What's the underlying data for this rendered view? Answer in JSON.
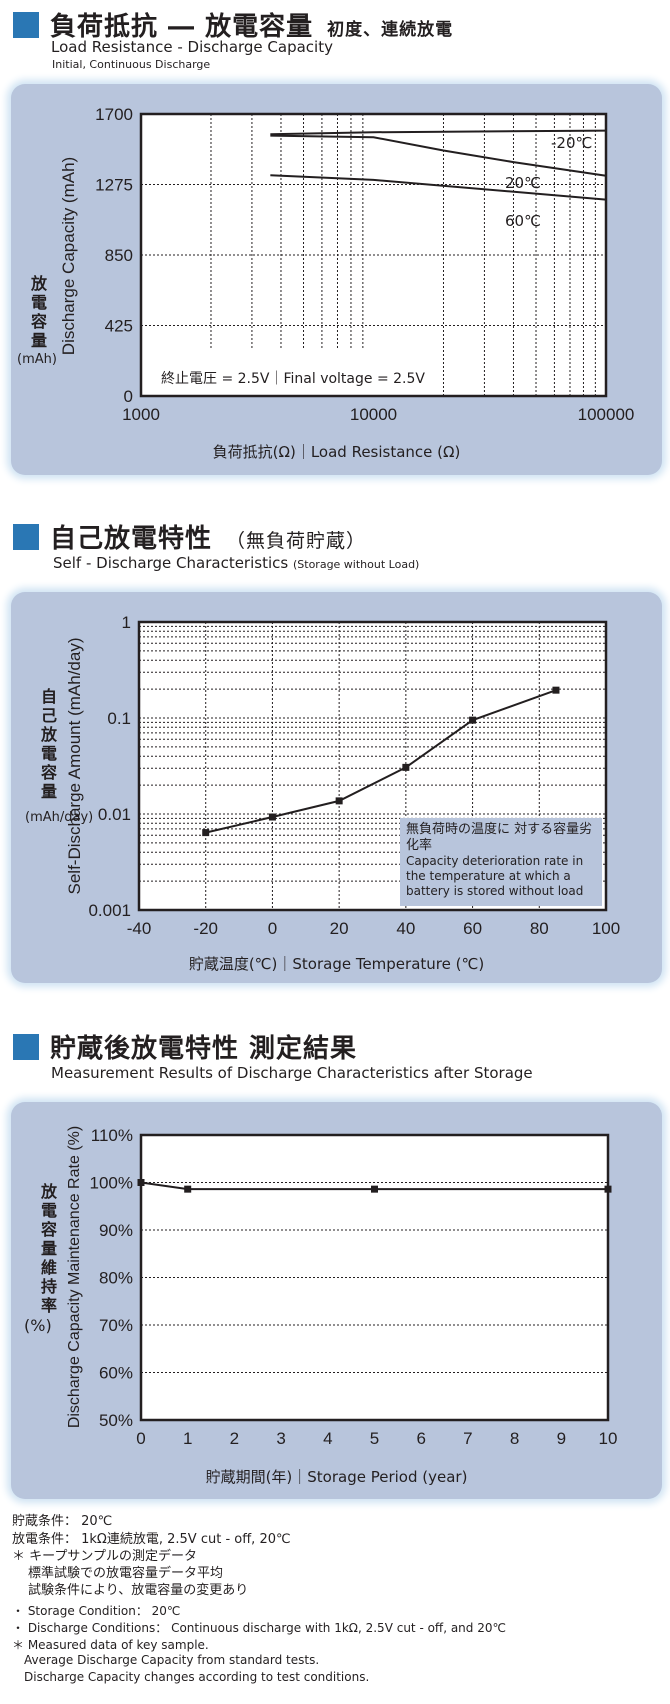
{
  "section1": {
    "title": "負荷抵抗 ― 放電容量",
    "title_note": "初度、連続放電",
    "subtitle": "Load Resistance - Discharge Capacity",
    "subsubtitle": "Initial, Continuous Discharge"
  },
  "section2": {
    "title": "自己放電特性",
    "title_note": "（無負荷貯蔵）",
    "subtitle": "Self - Discharge Characteristics",
    "subtitle_note": "(Storage without Load)"
  },
  "section3": {
    "title": "貯蔵後放電特性 測定結果",
    "subtitle": "Measurement Results of Discharge Characteristics after Storage"
  },
  "colors": {
    "accent": "#2a77b4",
    "panel": "#b8c5dc",
    "line": "#231f20"
  },
  "chart_data": [
    {
      "type": "line",
      "xscale": "log",
      "xlim": [
        1000,
        100000
      ],
      "ylim": [
        0,
        1700
      ],
      "xticks": [
        "1000",
        "10000",
        "100000"
      ],
      "yticks": [
        "0",
        "425",
        "850",
        "1275",
        "1700"
      ],
      "ylabel": "Discharge Capacity (mAh)",
      "ylabel_jp": "放電容量",
      "ylabel_unit": "(mAh)",
      "xlabel": "負荷抵抗(Ω)｜Load Resistance (Ω)",
      "annotation": "終止電圧 = 2.5V｜Final voltage = 2.5V",
      "grid": true,
      "series": [
        {
          "name": "-20℃",
          "x": [
            3600,
            10000,
            100000
          ],
          "y": [
            1578,
            1590,
            1600
          ]
        },
        {
          "name": "20℃",
          "x": [
            3600,
            10000,
            20000,
            40000,
            100000
          ],
          "y": [
            1570,
            1560,
            1480,
            1410,
            1328
          ]
        },
        {
          "name": "60℃",
          "x": [
            3600,
            10000,
            100000
          ],
          "y": [
            1331,
            1303,
            1184
          ]
        }
      ]
    },
    {
      "type": "line",
      "yscale": "log",
      "xlim": [
        -40,
        100
      ],
      "ylim": [
        0.001,
        1
      ],
      "xticks": [
        "-40",
        "-20",
        "0",
        "20",
        "40",
        "60",
        "80",
        "100"
      ],
      "yticks": [
        "0.001",
        "0.01",
        "0.1",
        "1"
      ],
      "ylabel": "Self-Discharge Amount (mAh/day)",
      "ylabel_jp": "自己放電容量",
      "ylabel_unit": "(mAh/day)",
      "xlabel": "貯蔵温度(℃)｜Storage Temperature (℃)",
      "grid": true,
      "annotation_jp": "無負荷時の温度に 対する容量劣化率",
      "annotation": "Capacity deterioration rate in the temperature at which a battery is stored without load",
      "series": [
        {
          "x": [
            -20,
            0,
            20,
            40,
            60,
            85
          ],
          "y": [
            0.0064,
            0.0093,
            0.0137,
            0.0306,
            0.095,
            0.195
          ]
        }
      ]
    },
    {
      "type": "line",
      "xlim": [
        0,
        10
      ],
      "ylim": [
        50,
        110
      ],
      "xticks": [
        "0",
        "1",
        "2",
        "3",
        "4",
        "5",
        "6",
        "7",
        "8",
        "9",
        "10"
      ],
      "yticks": [
        "50%",
        "60%",
        "70%",
        "80%",
        "90%",
        "100%",
        "110%"
      ],
      "ylabel": "Discharge Capacity Maintenance Rate (%)",
      "ylabel_jp": "放電容量維持率",
      "ylabel_unit": "(%)",
      "xlabel": "貯蔵期間(年)｜Storage Period (year)",
      "grid": true,
      "series": [
        {
          "x": [
            0,
            1,
            5,
            10
          ],
          "y": [
            100,
            98.6,
            98.6,
            98.6
          ]
        }
      ]
    }
  ],
  "notes_jp": [
    "貯蔵条件： 20℃",
    "放電条件： 1kΩ連続放電, 2.5V cut - off, 20℃",
    "＊ キープサンプルの測定データ",
    "標準試験での放電容量データ平均",
    "試験条件により、放電容量の変更あり"
  ],
  "notes_en": [
    "・ Storage Condition： 20℃",
    "・ Discharge Conditions： Continuous discharge with 1kΩ, 2.5V cut - off, and 20℃",
    "＊ Measured data of key sample.",
    "Average Discharge Capacity from standard tests.",
    "Discharge Capacity changes according to test conditions."
  ]
}
